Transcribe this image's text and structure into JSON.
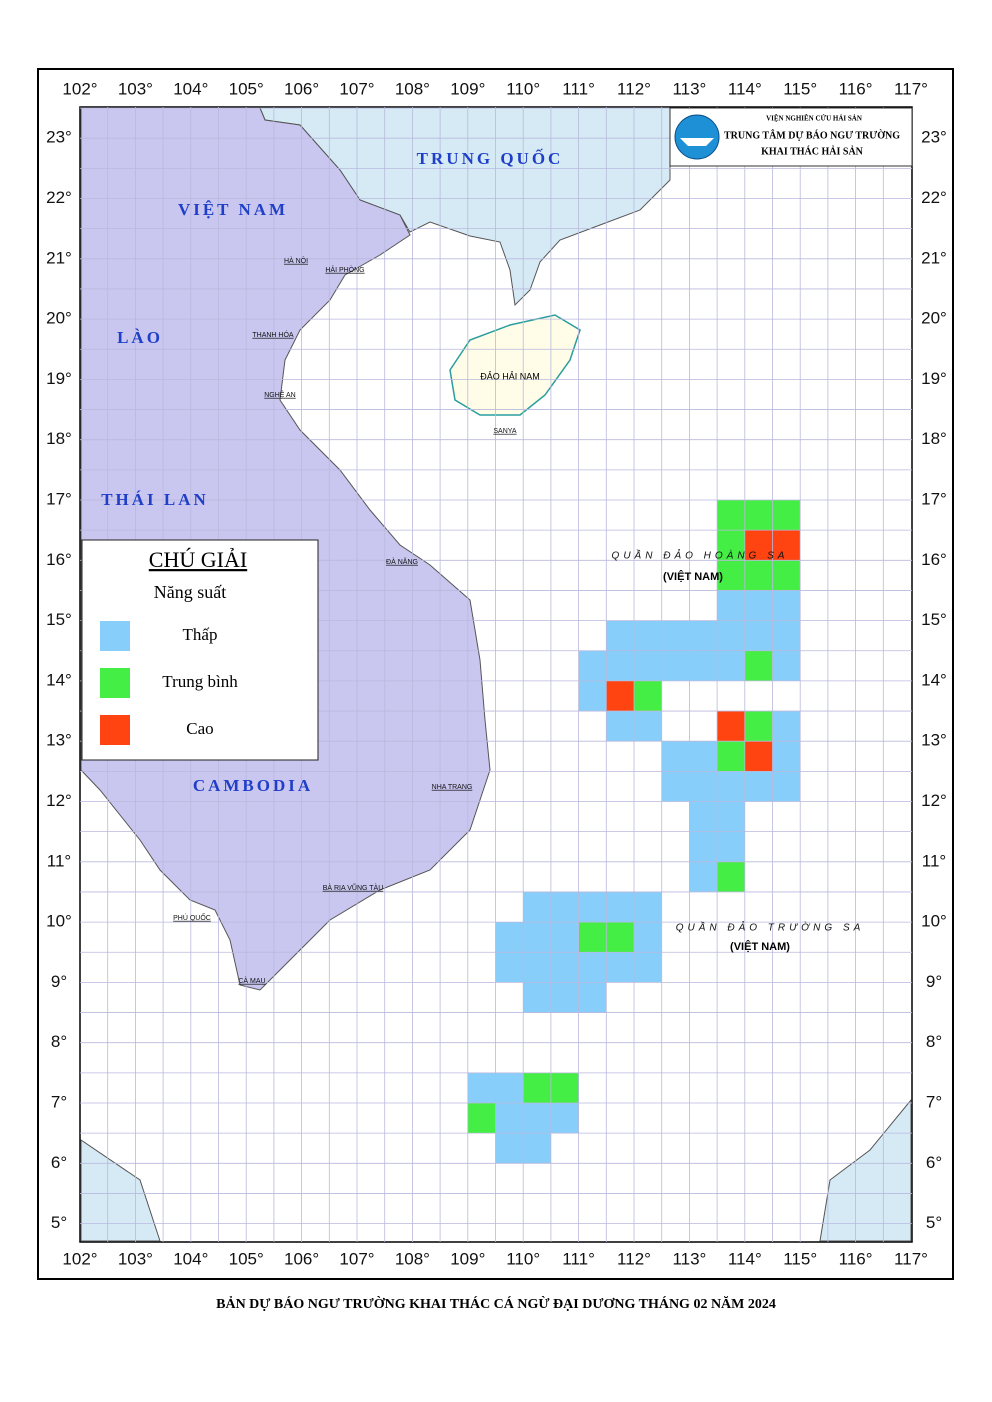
{
  "header": {
    "institute": "VIỆN NGHIÊN CỨU HẢI SẢN",
    "center": "TRUNG TÂM DỰ BÁO NGƯ TRƯỜNG",
    "unit": "KHAI THÁC HẢI SẢN"
  },
  "lon_ticks": [
    {
      "value": 102,
      "label": "102°"
    },
    {
      "value": 103,
      "label": "103°"
    },
    {
      "value": 104,
      "label": "104°"
    },
    {
      "value": 105,
      "label": "105°"
    },
    {
      "value": 106,
      "label": "106°"
    },
    {
      "value": 107,
      "label": "107°"
    },
    {
      "value": 108,
      "label": "108°"
    },
    {
      "value": 109,
      "label": "109°"
    },
    {
      "value": 110,
      "label": "110°"
    },
    {
      "value": 111,
      "label": "111°"
    },
    {
      "value": 112,
      "label": "112°"
    },
    {
      "value": 113,
      "label": "113°"
    },
    {
      "value": 114,
      "label": "114°"
    },
    {
      "value": 115,
      "label": "115°"
    },
    {
      "value": 116,
      "label": "116°"
    },
    {
      "value": 117,
      "label": "117°"
    }
  ],
  "lat_ticks": [
    {
      "value": 5,
      "label": "5°"
    },
    {
      "value": 6,
      "label": "6°"
    },
    {
      "value": 7,
      "label": "7°"
    },
    {
      "value": 8,
      "label": "8°"
    },
    {
      "value": 9,
      "label": "9°"
    },
    {
      "value": 10,
      "label": "10°"
    },
    {
      "value": 11,
      "label": "11°"
    },
    {
      "value": 12,
      "label": "12°"
    },
    {
      "value": 13,
      "label": "13°"
    },
    {
      "value": 14,
      "label": "14°"
    },
    {
      "value": 15,
      "label": "15°"
    },
    {
      "value": 16,
      "label": "16°"
    },
    {
      "value": 17,
      "label": "17°"
    },
    {
      "value": 18,
      "label": "18°"
    },
    {
      "value": 19,
      "label": "19°"
    },
    {
      "value": 20,
      "label": "20°"
    },
    {
      "value": 21,
      "label": "21°"
    },
    {
      "value": 22,
      "label": "22°"
    },
    {
      "value": 23,
      "label": "23°"
    }
  ],
  "places": {
    "china": "TRUNG QUỐC",
    "vietnam": "VIỆT NAM",
    "laos": "LÀO",
    "thailand": "THÁI LAN",
    "cambodia": "CAMBODIA",
    "hainan": "ĐẢO HẢI NAM",
    "paracel": "QUẦN ĐẢO HOÀNG SA",
    "paracel_owner": "(VIỆT NAM)",
    "spratly": "QUẦN ĐẢO TRƯỜNG SA",
    "spratly_owner": "(VIỆT NAM)",
    "hanoi": "HÀ NỘI",
    "haiphong": "HẢI PHÒNG",
    "thanhhoa": "THANH HÓA",
    "nghean": "NGHỆ AN",
    "danang": "ĐÀ NẴNG",
    "nhatrang": "NHA TRANG",
    "vungtau": "BÀ RỊA VŨNG TÀU",
    "camau": "CÀ MAU",
    "phuquoc": "PHÚ QUỐC",
    "sanya": "SANYA"
  },
  "legend": {
    "title": "CHÚ GIẢI",
    "subtitle": "Năng suất"
  },
  "zones": [
    {
      "name": "Thấp",
      "color": "#87cefa",
      "cells": [
        [
          113.5,
          15
        ],
        [
          114,
          15
        ],
        [
          114.5,
          15
        ],
        [
          111.5,
          14.5
        ],
        [
          112,
          14.5
        ],
        [
          112.5,
          14.5
        ],
        [
          113,
          14.5
        ],
        [
          113.5,
          14.5
        ],
        [
          114,
          14.5
        ],
        [
          114.5,
          14.5
        ],
        [
          111,
          14
        ],
        [
          111.5,
          14
        ],
        [
          112,
          14
        ],
        [
          112.5,
          14
        ],
        [
          113,
          14
        ],
        [
          113.5,
          14
        ],
        [
          114.5,
          14
        ],
        [
          111,
          13.5
        ],
        [
          111.5,
          13
        ],
        [
          112,
          13
        ],
        [
          114.5,
          13
        ],
        [
          112.5,
          12.5
        ],
        [
          113,
          12.5
        ],
        [
          114.5,
          12.5
        ],
        [
          112.5,
          12
        ],
        [
          113,
          12
        ],
        [
          113.5,
          12
        ],
        [
          114,
          12
        ],
        [
          114.5,
          12
        ],
        [
          113,
          11.5
        ],
        [
          113.5,
          11.5
        ],
        [
          113,
          11
        ],
        [
          113.5,
          11
        ],
        [
          113,
          10.5
        ],
        [
          110,
          10
        ],
        [
          110.5,
          10
        ],
        [
          111,
          10
        ],
        [
          111.5,
          10
        ],
        [
          112,
          10
        ],
        [
          109.5,
          9.5
        ],
        [
          110,
          9.5
        ],
        [
          110.5,
          9.5
        ],
        [
          112,
          9.5
        ],
        [
          109.5,
          9
        ],
        [
          110,
          9
        ],
        [
          110.5,
          9
        ],
        [
          111,
          9
        ],
        [
          111.5,
          9
        ],
        [
          112,
          9
        ],
        [
          110,
          8.5
        ],
        [
          110.5,
          8.5
        ],
        [
          111,
          8.5
        ],
        [
          109,
          7
        ],
        [
          109.5,
          7
        ],
        [
          109.5,
          6.5
        ],
        [
          110,
          6.5
        ],
        [
          110.5,
          6.5
        ],
        [
          109.5,
          6
        ],
        [
          110,
          6
        ]
      ]
    },
    {
      "name": "Trung bình",
      "color": "#44ee44",
      "cells": [
        [
          113.5,
          16.5
        ],
        [
          114,
          16.5
        ],
        [
          114.5,
          16.5
        ],
        [
          113.5,
          16
        ],
        [
          113.5,
          15.5
        ],
        [
          114,
          15.5
        ],
        [
          114.5,
          15.5
        ],
        [
          114,
          14
        ],
        [
          112,
          13.5
        ],
        [
          114,
          13
        ],
        [
          113.5,
          12.5
        ],
        [
          113.5,
          10.5
        ],
        [
          111,
          9.5
        ],
        [
          111.5,
          9.5
        ],
        [
          110,
          7
        ],
        [
          110.5,
          7
        ],
        [
          109,
          6.5
        ]
      ]
    },
    {
      "name": "Cao",
      "color": "#ff4411",
      "cells": [
        [
          114,
          16
        ],
        [
          114.5,
          16
        ],
        [
          111.5,
          13.5
        ],
        [
          113.5,
          13
        ],
        [
          114,
          12.5
        ]
      ]
    }
  ],
  "title": "BẢN DỰ BÁO NGƯ TRƯỜNG KHAI THÁC  CÁ NGỪ ĐẠI DƯƠNG THÁNG 02 NĂM 2024"
}
